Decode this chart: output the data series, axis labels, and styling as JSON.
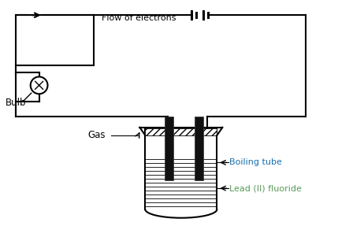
{
  "bg_color": "#ffffff",
  "line_color": "#000000",
  "labels": {
    "flow_electrons": "Flow of electrons",
    "bulb": "Bulb",
    "gas": "Gas",
    "boiling_tube": "Boiling tube",
    "lead_fluoride": "Lead (II) fluoride"
  },
  "boiling_tube_label_color": "#1a6faf",
  "lead_fluoride_label_color": "#5a9a5a",
  "figsize": [
    4.29,
    2.87
  ],
  "dpi": 100
}
